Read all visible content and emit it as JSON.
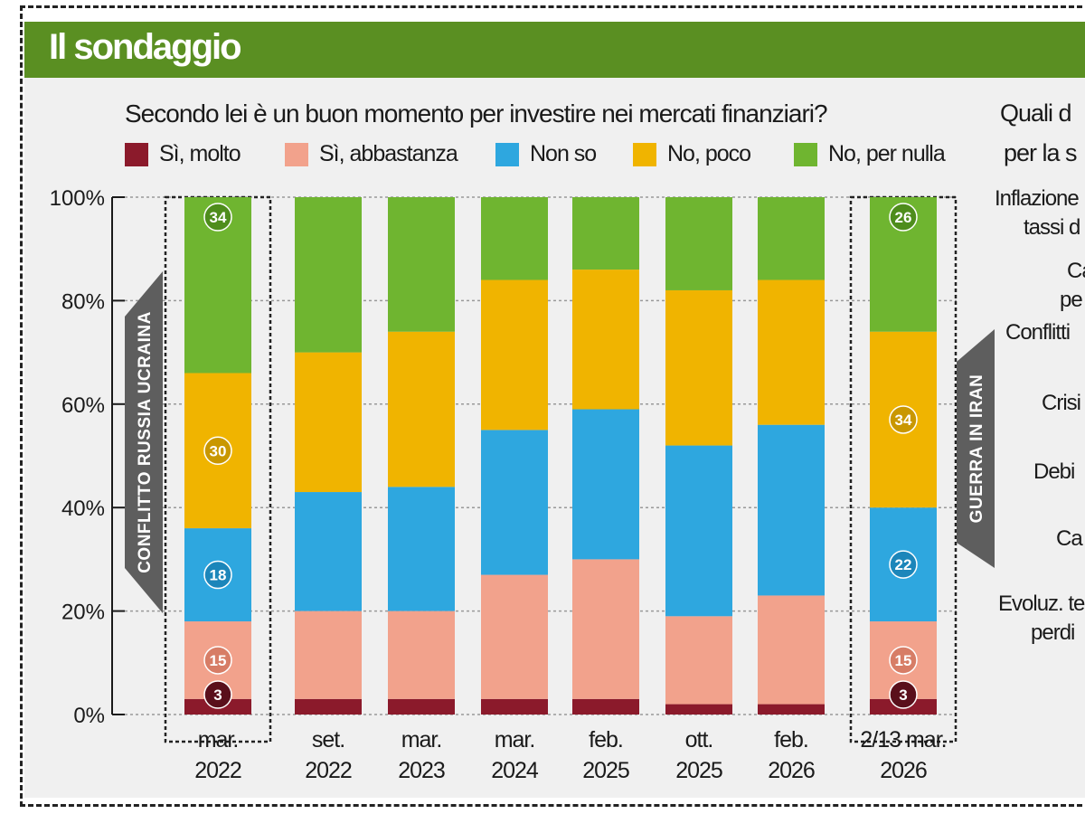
{
  "header": {
    "title": "Il sondaggio"
  },
  "colors": {
    "si_molto": "#8b1a2b",
    "si_abbastanza": "#f2a28c",
    "non_so": "#2ea7df",
    "no_poco": "#f0b400",
    "no_per_nulla": "#6fb530",
    "header_bg": "#5a8f22",
    "event_band": "#5e5e5e"
  },
  "chart_data": {
    "type": "bar",
    "stacked": true,
    "title": "Secondo lei è un buon momento per investire nei mercati finanziari?",
    "categories": [
      [
        "mar.",
        "2022"
      ],
      [
        "set.",
        "2022"
      ],
      [
        "mar.",
        "2023"
      ],
      [
        "mar.",
        "2024"
      ],
      [
        "feb.",
        "2025"
      ],
      [
        "ott.",
        "2025"
      ],
      [
        "feb.",
        "2026"
      ],
      [
        "2/13 mar.",
        "2026"
      ]
    ],
    "series": [
      {
        "name": "Sì, molto",
        "key": "si_molto",
        "values": [
          3,
          3,
          3,
          3,
          3,
          2,
          2,
          3
        ]
      },
      {
        "name": "Sì, abbastanza",
        "key": "si_abbastanza",
        "values": [
          15,
          17,
          17,
          24,
          27,
          17,
          21,
          15
        ]
      },
      {
        "name": "Non so",
        "key": "non_so",
        "values": [
          18,
          23,
          24,
          28,
          29,
          33,
          33,
          22
        ]
      },
      {
        "name": "No, poco",
        "key": "no_poco",
        "values": [
          30,
          27,
          30,
          29,
          27,
          30,
          28,
          34
        ]
      },
      {
        "name": "No, per nulla",
        "key": "no_per_nulla",
        "values": [
          34,
          30,
          26,
          16,
          14,
          18,
          16,
          26
        ]
      }
    ],
    "data_labels": {
      "0": [
        3,
        15,
        18,
        30,
        34
      ],
      "7": [
        3,
        15,
        22,
        34,
        26
      ]
    },
    "yticks": [
      "0%",
      "20%",
      "40%",
      "60%",
      "80%",
      "100%"
    ],
    "ylim": [
      0,
      100
    ],
    "annotations": [
      {
        "text": "CONFLITTO RUSSIA UCRAINA",
        "category_index": 0,
        "side": "left"
      },
      {
        "text": "GUERRA IN IRAN",
        "category_index": 7,
        "side": "right"
      }
    ]
  },
  "right_panel": {
    "question_line1": "Quali d",
    "question_line2": "per la s",
    "items": [
      [
        "Inflazione",
        "tassi d"
      ],
      [
        "Ca",
        "pe"
      ],
      [
        "Conflitti"
      ],
      [
        "Crisi"
      ],
      [
        "Debi"
      ],
      [
        "Ca"
      ],
      [
        "Evoluz. te",
        "perdi"
      ]
    ]
  }
}
